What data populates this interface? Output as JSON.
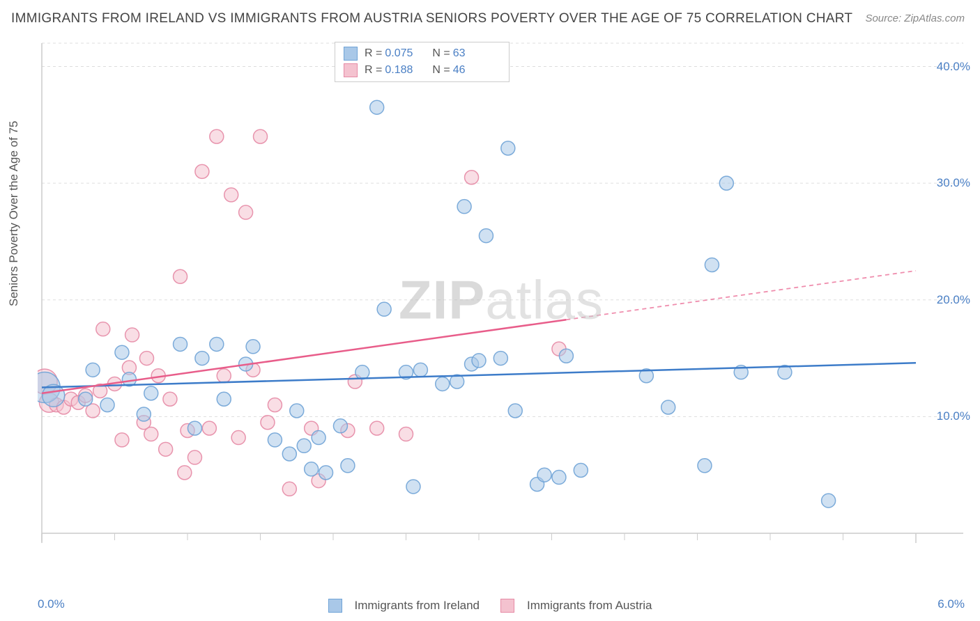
{
  "title": "IMMIGRANTS FROM IRELAND VS IMMIGRANTS FROM AUSTRIA SENIORS POVERTY OVER THE AGE OF 75 CORRELATION CHART",
  "source": "Source: ZipAtlas.com",
  "y_axis_label": "Seniors Poverty Over the Age of 75",
  "watermark_zip": "ZIP",
  "watermark_atlas": "atlas",
  "chart": {
    "type": "scatter",
    "xlim": [
      0.0,
      6.0
    ],
    "ylim": [
      0.0,
      42.0
    ],
    "x_ticks": [
      0.0,
      6.0
    ],
    "x_tick_labels": [
      "0.0%",
      "6.0%"
    ],
    "y_ticks": [
      10.0,
      20.0,
      30.0,
      40.0
    ],
    "y_tick_labels": [
      "10.0%",
      "20.0%",
      "30.0%",
      "40.0%"
    ],
    "x_minor_ticks": [
      0.5,
      1.0,
      1.5,
      2.0,
      2.5,
      3.0,
      3.5,
      4.0,
      4.5,
      5.0,
      5.5
    ],
    "grid_color": "#dddddd",
    "axis_color": "#cccccc",
    "background_color": "#ffffff",
    "marker_radius": 10,
    "marker_opacity": 0.55,
    "marker_stroke_width": 1.5,
    "series": [
      {
        "name": "Immigrants from Ireland",
        "color_fill": "#a9c8e8",
        "color_stroke": "#6fa3d6",
        "trend": {
          "slope": 0.35,
          "intercept": 12.5,
          "x_solid_to": 6.0,
          "dash_from": 6.0
        },
        "points": [
          {
            "x": 0.02,
            "y": 12.5,
            "r": 22
          },
          {
            "x": 0.08,
            "y": 11.8,
            "r": 16
          },
          {
            "x": 0.3,
            "y": 11.5
          },
          {
            "x": 0.35,
            "y": 14.0
          },
          {
            "x": 0.45,
            "y": 11.0
          },
          {
            "x": 0.55,
            "y": 15.5
          },
          {
            "x": 0.6,
            "y": 13.2
          },
          {
            "x": 0.7,
            "y": 10.2
          },
          {
            "x": 0.75,
            "y": 12.0
          },
          {
            "x": 0.95,
            "y": 16.2
          },
          {
            "x": 1.05,
            "y": 9.0
          },
          {
            "x": 1.1,
            "y": 15.0
          },
          {
            "x": 1.2,
            "y": 16.2
          },
          {
            "x": 1.25,
            "y": 11.5
          },
          {
            "x": 1.4,
            "y": 14.5
          },
          {
            "x": 1.45,
            "y": 16.0
          },
          {
            "x": 1.6,
            "y": 8.0
          },
          {
            "x": 1.7,
            "y": 6.8
          },
          {
            "x": 1.75,
            "y": 10.5
          },
          {
            "x": 1.8,
            "y": 7.5
          },
          {
            "x": 1.85,
            "y": 5.5
          },
          {
            "x": 1.9,
            "y": 8.2
          },
          {
            "x": 1.95,
            "y": 5.2
          },
          {
            "x": 2.05,
            "y": 9.2
          },
          {
            "x": 2.1,
            "y": 5.8
          },
          {
            "x": 2.2,
            "y": 13.8
          },
          {
            "x": 2.3,
            "y": 36.5
          },
          {
            "x": 2.35,
            "y": 19.2
          },
          {
            "x": 2.5,
            "y": 13.8
          },
          {
            "x": 2.55,
            "y": 4.0
          },
          {
            "x": 2.6,
            "y": 14.0
          },
          {
            "x": 2.75,
            "y": 12.8
          },
          {
            "x": 2.85,
            "y": 13.0
          },
          {
            "x": 2.9,
            "y": 28.0
          },
          {
            "x": 2.95,
            "y": 14.5
          },
          {
            "x": 3.0,
            "y": 14.8
          },
          {
            "x": 3.05,
            "y": 25.5
          },
          {
            "x": 3.15,
            "y": 15.0
          },
          {
            "x": 3.2,
            "y": 33.0
          },
          {
            "x": 3.25,
            "y": 10.5
          },
          {
            "x": 3.4,
            "y": 4.2
          },
          {
            "x": 3.45,
            "y": 5.0
          },
          {
            "x": 3.55,
            "y": 4.8
          },
          {
            "x": 3.6,
            "y": 15.2
          },
          {
            "x": 3.7,
            "y": 5.4
          },
          {
            "x": 4.15,
            "y": 13.5
          },
          {
            "x": 4.3,
            "y": 10.8
          },
          {
            "x": 4.55,
            "y": 5.8
          },
          {
            "x": 4.6,
            "y": 23.0
          },
          {
            "x": 4.7,
            "y": 30.0
          },
          {
            "x": 4.8,
            "y": 13.8
          },
          {
            "x": 5.4,
            "y": 2.8
          },
          {
            "x": 5.1,
            "y": 13.8
          }
        ]
      },
      {
        "name": "Immigrants from Austria",
        "color_fill": "#f4c2cf",
        "color_stroke": "#e68aa5",
        "trend": {
          "slope": 1.75,
          "intercept": 12.0,
          "x_solid_to": 3.6,
          "dash_from": 3.6
        },
        "points": [
          {
            "x": 0.02,
            "y": 13.0,
            "r": 18
          },
          {
            "x": 0.05,
            "y": 11.2,
            "r": 14
          },
          {
            "x": 0.1,
            "y": 11.0
          },
          {
            "x": 0.15,
            "y": 10.8
          },
          {
            "x": 0.2,
            "y": 11.5
          },
          {
            "x": 0.25,
            "y": 11.2
          },
          {
            "x": 0.3,
            "y": 11.8
          },
          {
            "x": 0.35,
            "y": 10.5
          },
          {
            "x": 0.4,
            "y": 12.2
          },
          {
            "x": 0.42,
            "y": 17.5
          },
          {
            "x": 0.5,
            "y": 12.8
          },
          {
            "x": 0.55,
            "y": 8.0
          },
          {
            "x": 0.6,
            "y": 14.2
          },
          {
            "x": 0.62,
            "y": 17.0
          },
          {
            "x": 0.7,
            "y": 9.5
          },
          {
            "x": 0.72,
            "y": 15.0
          },
          {
            "x": 0.75,
            "y": 8.5
          },
          {
            "x": 0.8,
            "y": 13.5
          },
          {
            "x": 0.85,
            "y": 7.2
          },
          {
            "x": 0.88,
            "y": 11.5
          },
          {
            "x": 0.95,
            "y": 22.0
          },
          {
            "x": 0.98,
            "y": 5.2
          },
          {
            "x": 1.0,
            "y": 8.8
          },
          {
            "x": 1.05,
            "y": 6.5
          },
          {
            "x": 1.1,
            "y": 31.0
          },
          {
            "x": 1.15,
            "y": 9.0
          },
          {
            "x": 1.2,
            "y": 34.0
          },
          {
            "x": 1.25,
            "y": 13.5
          },
          {
            "x": 1.3,
            "y": 29.0
          },
          {
            "x": 1.35,
            "y": 8.2
          },
          {
            "x": 1.4,
            "y": 27.5
          },
          {
            "x": 1.45,
            "y": 14.0
          },
          {
            "x": 1.5,
            "y": 34.0
          },
          {
            "x": 1.55,
            "y": 9.5
          },
          {
            "x": 1.6,
            "y": 11.0
          },
          {
            "x": 1.7,
            "y": 3.8
          },
          {
            "x": 1.85,
            "y": 9.0
          },
          {
            "x": 1.9,
            "y": 4.5
          },
          {
            "x": 2.1,
            "y": 8.8
          },
          {
            "x": 2.15,
            "y": 13.0
          },
          {
            "x": 2.3,
            "y": 9.0
          },
          {
            "x": 2.5,
            "y": 8.5
          },
          {
            "x": 2.95,
            "y": 30.5
          },
          {
            "x": 3.55,
            "y": 15.8
          }
        ]
      }
    ]
  },
  "stats_legend": {
    "rows": [
      {
        "color_fill": "#a9c8e8",
        "color_stroke": "#6fa3d6",
        "r_label": "R =",
        "r_value": "0.075",
        "n_label": "N =",
        "n_value": "63"
      },
      {
        "color_fill": "#f4c2cf",
        "color_stroke": "#e68aa5",
        "r_label": "R =",
        "r_value": "0.188",
        "n_label": "N =",
        "n_value": "46"
      }
    ]
  },
  "bottom_legend": {
    "items": [
      {
        "color_fill": "#a9c8e8",
        "color_stroke": "#6fa3d6",
        "label": "Immigrants from Ireland"
      },
      {
        "color_fill": "#f4c2cf",
        "color_stroke": "#e68aa5",
        "label": "Immigrants from Austria"
      }
    ]
  }
}
